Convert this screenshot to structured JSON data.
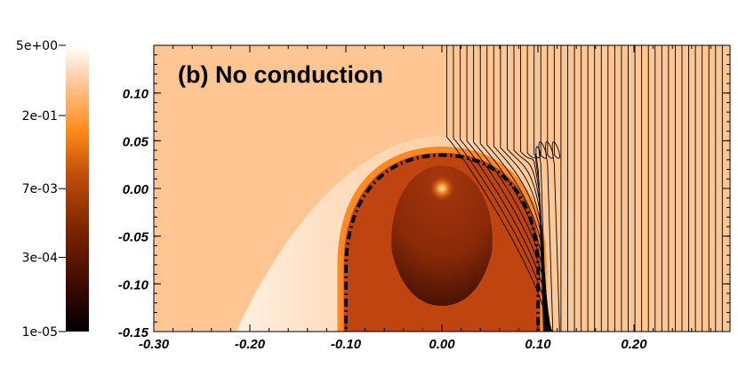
{
  "chart_data": {
    "type": "heatmap",
    "title": "(b) No conduction",
    "xlim": [
      -0.3,
      0.3
    ],
    "ylim": [
      -0.15,
      0.15
    ],
    "x_ticks": [
      -0.3,
      -0.2,
      -0.1,
      0.0,
      0.1,
      0.2
    ],
    "x_tick_labels": [
      "-0.30",
      "-0.20",
      "-0.10",
      "0.00",
      "0.10",
      "0.20"
    ],
    "y_ticks": [
      0.1,
      0.05,
      0.0,
      -0.05,
      -0.1,
      -0.15
    ],
    "y_tick_labels": [
      "0.10",
      "0.05",
      "0.00",
      "-0.05",
      "-0.10",
      "-0.15"
    ],
    "colorbar": {
      "scale": "log",
      "range": [
        1e-05,
        5.0
      ],
      "tick_values": [
        5.0,
        0.2,
        0.007,
        0.0003,
        1e-05
      ],
      "tick_labels": [
        "5e+00",
        "2e-01",
        "7e-03",
        "3e-04",
        "1e-05"
      ],
      "colormap": [
        "#000000",
        "#3a0800",
        "#7a2300",
        "#c24e0a",
        "#ff8a1a",
        "#ffc08a",
        "#ffffff"
      ]
    },
    "background_color": "#ffc694",
    "dashed_contour": {
      "center_x": 0.0,
      "half_width_x": 0.1,
      "top_y": 0.035,
      "bottom_y": -0.15
    },
    "hot_spot": {
      "x": 0.0,
      "y": 0.0
    },
    "field_lines_x_start": [
      0.005,
      0.012,
      0.019,
      0.026,
      0.033,
      0.04,
      0.047,
      0.054,
      0.061,
      0.068,
      0.075,
      0.082,
      0.089,
      0.096,
      0.103,
      0.11,
      0.117,
      0.124,
      0.131,
      0.138,
      0.145,
      0.152,
      0.159,
      0.166,
      0.173,
      0.18,
      0.187,
      0.194,
      0.201,
      0.208,
      0.215,
      0.222,
      0.229,
      0.236,
      0.243,
      0.25,
      0.257,
      0.264,
      0.271,
      0.278,
      0.285,
      0.292
    ]
  }
}
